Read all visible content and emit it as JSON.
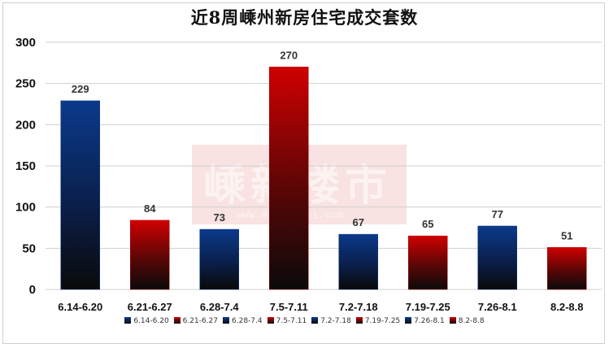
{
  "title": "近8周嵊州新房住宅成交套数",
  "watermark": {
    "text": "嵊新楼市",
    "url": "www.0575fushi.com"
  },
  "colors": {
    "blue": "#0b3a8c",
    "red": "#d00000",
    "dark": "#0a0a0a"
  },
  "chart_data": {
    "type": "bar",
    "title": "近8周嵊州新房住宅成交套数",
    "categories": [
      "6.14-6.20",
      "6.21-6.27",
      "6.28-7.4",
      "7.5-7.11",
      "7.2-7.18",
      "7.19-7.25",
      "7.26-8.1",
      "8.2-8.8"
    ],
    "values": [
      229,
      84,
      73,
      270,
      67,
      65,
      77,
      51
    ],
    "bar_colors": [
      "blue",
      "red",
      "blue",
      "red",
      "blue",
      "red",
      "blue",
      "red"
    ],
    "ylim": [
      0,
      300
    ],
    "yticks": [
      0,
      50,
      100,
      150,
      200,
      250,
      300
    ],
    "grid": true,
    "legend": "bottom"
  }
}
